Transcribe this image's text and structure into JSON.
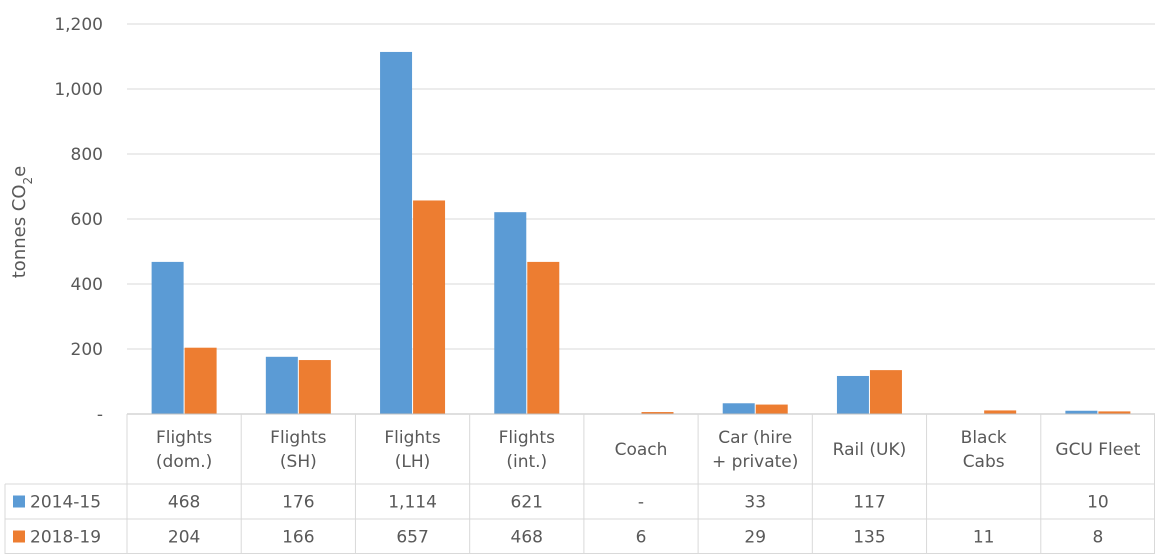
{
  "chart_data": {
    "type": "bar",
    "ylabel_main": "tonnes CO",
    "ylabel_sub": "2",
    "ylabel_tail": "e",
    "ylim": [
      0,
      1200
    ],
    "yticks": [
      0,
      200,
      400,
      600,
      800,
      1000,
      1200
    ],
    "ytick_labels": [
      "-",
      "200",
      "400",
      "600",
      "800",
      "1,000",
      "1,200"
    ],
    "grid": true,
    "legend": "table",
    "categories": [
      [
        "Flights",
        "(dom.)"
      ],
      [
        "Flights",
        "(SH)"
      ],
      [
        "Flights",
        "(LH)"
      ],
      [
        "Flights",
        "(int.)"
      ],
      [
        "Coach"
      ],
      [
        "Car (hire",
        "+ private)"
      ],
      [
        "Rail (UK)"
      ],
      [
        "Black",
        "Cabs"
      ],
      [
        "GCU Fleet"
      ]
    ],
    "series": [
      {
        "name": "2014-15",
        "color": "#5B9BD5",
        "values": [
          468,
          176,
          1114,
          621,
          0,
          33,
          117,
          0,
          10
        ],
        "labels": [
          "468",
          "176",
          "1,114",
          "621",
          "-",
          "33",
          "117",
          "",
          "10"
        ]
      },
      {
        "name": "2018-19",
        "color": "#ED7D31",
        "values": [
          204,
          166,
          657,
          468,
          6,
          29,
          135,
          11,
          8
        ],
        "labels": [
          "204",
          "166",
          "657",
          "468",
          "6",
          "29",
          "135",
          "11",
          "8"
        ]
      }
    ]
  }
}
